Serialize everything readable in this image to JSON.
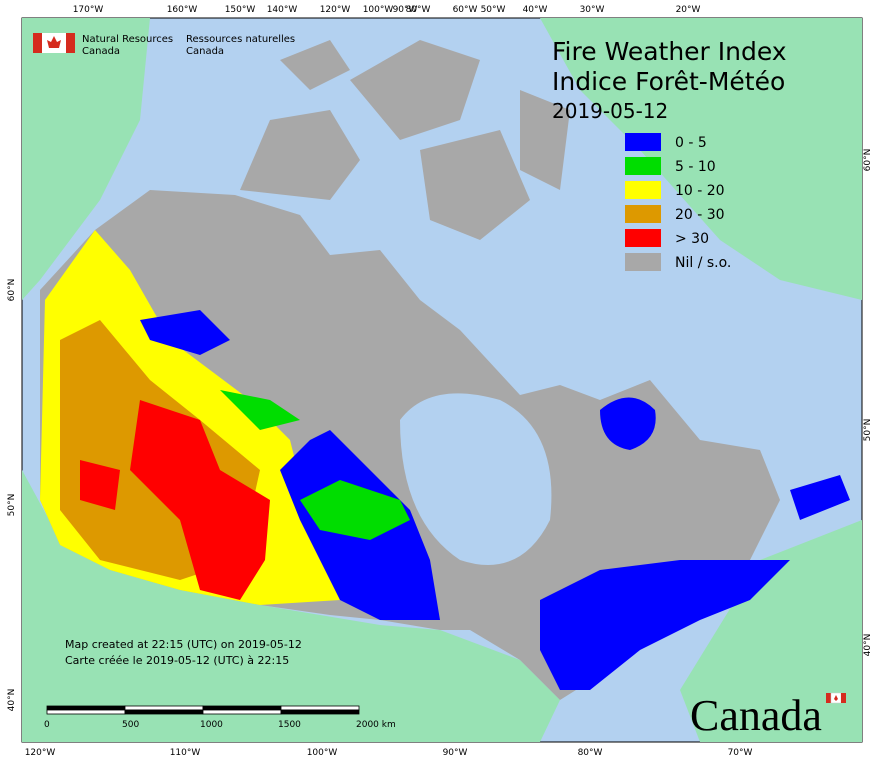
{
  "header": {
    "org_en_1": "Natural Resources",
    "org_en_2": "Canada",
    "org_fr_1": "Ressources naturelles",
    "org_fr_2": "Canada"
  },
  "title_en": "Fire Weather Index",
  "title_fr": "Indice Forêt-Météo",
  "date": "2019-05-12",
  "legend": [
    {
      "label": "0 - 5",
      "color": "#0000ff"
    },
    {
      "label": "5 - 10",
      "color": "#00dd00"
    },
    {
      "label": "10 - 20",
      "color": "#ffff00"
    },
    {
      "label": "20 - 30",
      "color": "#dd9900"
    },
    {
      "label": "> 30",
      "color": "#ff0000"
    },
    {
      "label": "Nil / s.o.",
      "color": "#a8a8a8"
    }
  ],
  "graticule": {
    "top": [
      "170°W",
      "160°W",
      "150°W",
      "140°W",
      "120°W",
      "100°W",
      "90°W",
      "80°W",
      "60°W",
      "50°W",
      "40°W",
      "30°W",
      "20°W"
    ],
    "bottom": [
      "120°W",
      "110°W",
      "100°W",
      "90°W",
      "80°W",
      "70°W"
    ],
    "left": [
      "60°N",
      "50°N",
      "40°N"
    ],
    "right": [
      "60°N",
      "50°N",
      "40°N"
    ]
  },
  "footer": {
    "created_en": "Map created at 22:15 (UTC) on 2019-05-12",
    "created_fr": "Carte créée le 2019-05-12 (UTC) à 22:15"
  },
  "scale_bar": [
    "0",
    "500",
    "1000",
    "1500",
    "2000 km"
  ],
  "wordmark": "Canada"
}
